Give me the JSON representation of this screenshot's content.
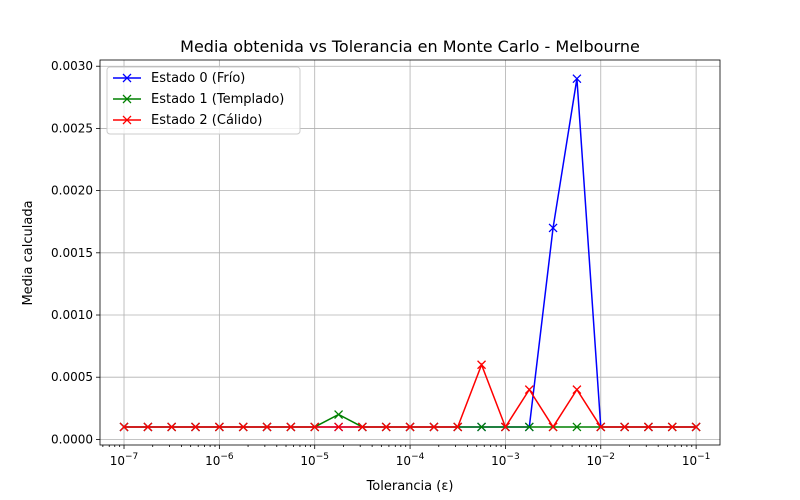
{
  "chart_data": {
    "type": "line",
    "title": "Media obtenida vs Tolerancia en Monte Carlo - Melbourne",
    "xlabel": "Tolerancia (ε)",
    "ylabel": "Media calculada",
    "xscale": "log",
    "xlim": [
      5.6e-08,
      0.178
    ],
    "ylim": [
      -4.5e-05,
      0.00305
    ],
    "xtick_values": [
      1e-07,
      1e-06,
      1e-05,
      0.0001,
      0.001,
      0.01,
      0.1
    ],
    "xtick_base": [
      "10",
      "10",
      "10",
      "10",
      "10",
      "10",
      "10"
    ],
    "xtick_exponents": [
      "−7",
      "−6",
      "−5",
      "−4",
      "−3",
      "−2",
      "−1"
    ],
    "ytick_values": [
      0,
      0.0005,
      0.001,
      0.0015,
      0.002,
      0.0025,
      0.003
    ],
    "ytick_labels": [
      "0.0000",
      "0.0005",
      "0.0010",
      "0.0015",
      "0.0020",
      "0.0025",
      "0.0030"
    ],
    "grid": true,
    "legend_position": "upper-left",
    "marker": "x",
    "x": [
      1e-07,
      1.78e-07,
      3.16e-07,
      5.62e-07,
      1e-06,
      1.78e-06,
      3.16e-06,
      5.62e-06,
      1e-05,
      1.78e-05,
      3.16e-05,
      5.62e-05,
      0.0001,
      0.000178,
      0.000316,
      0.000562,
      0.001,
      0.00178,
      0.00316,
      0.00562,
      0.01,
      0.0178,
      0.0316,
      0.0562,
      0.1
    ],
    "series": [
      {
        "name": "Estado 0 (Frío)",
        "color": "#0000ff",
        "values": [
          0.0001,
          0.0001,
          0.0001,
          0.0001,
          0.0001,
          0.0001,
          0.0001,
          0.0001,
          0.0001,
          0.0001,
          0.0001,
          0.0001,
          0.0001,
          0.0001,
          0.0001,
          0.0001,
          0.0001,
          0.0001,
          0.0017,
          0.0029,
          0.0001,
          0.0001,
          0.0001,
          0.0001,
          0.0001
        ]
      },
      {
        "name": "Estado 1 (Templado)",
        "color": "#008000",
        "values": [
          0.0001,
          0.0001,
          0.0001,
          0.0001,
          0.0001,
          0.0001,
          0.0001,
          0.0001,
          0.0001,
          0.0002,
          0.0001,
          0.0001,
          0.0001,
          0.0001,
          0.0001,
          0.0001,
          0.0001,
          0.0001,
          0.0001,
          0.0001,
          0.0001,
          0.0001,
          0.0001,
          0.0001,
          0.0001
        ]
      },
      {
        "name": "Estado 2 (Cálido)",
        "color": "#ff0000",
        "values": [
          0.0001,
          0.0001,
          0.0001,
          0.0001,
          0.0001,
          0.0001,
          0.0001,
          0.0001,
          0.0001,
          0.0001,
          0.0001,
          0.0001,
          0.0001,
          0.0001,
          0.0001,
          0.0006,
          0.0001,
          0.0004,
          0.0001,
          0.0004,
          0.0001,
          0.0001,
          0.0001,
          0.0001,
          0.0001
        ]
      }
    ]
  }
}
